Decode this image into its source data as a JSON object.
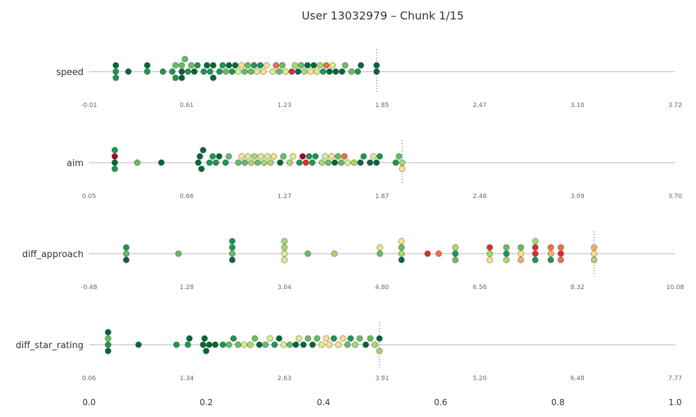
{
  "chart_data": {
    "type": "scatter",
    "title": "User 13032979 – Chunk 1/15",
    "grid": false,
    "bottom_axis": {
      "range": [
        0.0,
        1.0
      ],
      "ticks": [
        "0.0",
        "0.2",
        "0.4",
        "0.6",
        "0.8",
        "1.0"
      ]
    },
    "color_scale": [
      "#006837",
      "#1a9850",
      "#66bd63",
      "#a6d96a",
      "#d9ef8b",
      "#fee08b",
      "#fdae61",
      "#f46d43",
      "#d73027",
      "#a50026"
    ],
    "rows": [
      {
        "name": "speed",
        "range": [
          -0.01,
          3.72
        ],
        "tick_labels": [
          "-0.01",
          "0.61",
          "1.23",
          "1.85",
          "2.47",
          "3.10",
          "3.72"
        ],
        "marker": 1.82,
        "points": [
          0.16,
          0.16,
          0.16,
          0.24,
          0.36,
          0.36,
          0.46,
          0.52,
          0.54,
          0.54,
          0.58,
          0.58,
          0.58,
          0.6,
          0.62,
          0.64,
          0.66,
          0.68,
          0.72,
          0.74,
          0.76,
          0.78,
          0.78,
          0.82,
          0.84,
          0.86,
          0.88,
          0.9,
          0.92,
          0.94,
          0.96,
          0.98,
          1.0,
          1.02,
          1.04,
          1.06,
          1.08,
          1.1,
          1.12,
          1.16,
          1.18,
          1.2,
          1.22,
          1.24,
          1.28,
          1.3,
          1.32,
          1.34,
          1.36,
          1.38,
          1.4,
          1.42,
          1.44,
          1.46,
          1.48,
          1.5,
          1.52,
          1.54,
          1.56,
          1.6,
          1.62,
          1.66,
          1.7,
          1.72,
          1.82,
          1.82
        ]
      },
      {
        "name": "aim",
        "range": [
          0.05,
          3.7
        ],
        "tick_labels": [
          "0.05",
          "0.66",
          "1.27",
          "1.87",
          "2.48",
          "3.09",
          "3.70"
        ],
        "marker": 2.0,
        "points": [
          0.21,
          0.21,
          0.21,
          0.21,
          0.35,
          0.5,
          0.73,
          0.74,
          0.75,
          0.76,
          0.8,
          0.82,
          0.84,
          0.86,
          0.9,
          0.92,
          0.98,
          1.0,
          1.02,
          1.04,
          1.06,
          1.08,
          1.1,
          1.12,
          1.14,
          1.16,
          1.18,
          1.2,
          1.24,
          1.26,
          1.3,
          1.32,
          1.36,
          1.38,
          1.4,
          1.42,
          1.44,
          1.46,
          1.5,
          1.52,
          1.54,
          1.56,
          1.58,
          1.6,
          1.62,
          1.64,
          1.66,
          1.7,
          1.74,
          1.76,
          1.8,
          1.82,
          1.84,
          1.86,
          1.96,
          1.98,
          2.0,
          2.0
        ]
      },
      {
        "name": "diff_approach",
        "range": [
          -0.48,
          10.08
        ],
        "tick_labels": [
          "-0.48",
          "1.28",
          "3.04",
          "4.80",
          "6.56",
          "8.32",
          "10.08"
        ],
        "marker": 8.62,
        "points": [
          0.19,
          0.19,
          0.19,
          1.13,
          2.1,
          2.1,
          2.1,
          2.1,
          3.04,
          3.04,
          3.04,
          3.04,
          3.46,
          3.94,
          4.76,
          4.76,
          5.15,
          5.15,
          5.15,
          5.15,
          5.62,
          5.82,
          6.12,
          6.12,
          6.12,
          6.74,
          6.74,
          6.74,
          7.04,
          7.04,
          7.04,
          7.3,
          7.3,
          7.3,
          7.56,
          7.56,
          7.56,
          7.56,
          7.84,
          7.84,
          7.84,
          8.02,
          8.02,
          8.02,
          8.62,
          8.62,
          8.62
        ]
      },
      {
        "name": "diff_star_rating",
        "range": [
          0.06,
          7.77
        ],
        "tick_labels": [
          "0.06",
          "1.34",
          "2.63",
          "3.91",
          "5.20",
          "6.48",
          "7.77"
        ],
        "marker": 3.88,
        "points": [
          0.31,
          0.31,
          0.31,
          0.31,
          0.71,
          1.21,
          1.36,
          1.38,
          1.56,
          1.58,
          1.6,
          1.64,
          1.72,
          1.82,
          1.9,
          1.96,
          2.02,
          2.1,
          2.18,
          2.24,
          2.3,
          2.38,
          2.44,
          2.5,
          2.56,
          2.62,
          2.7,
          2.78,
          2.82,
          2.88,
          2.94,
          3.0,
          3.06,
          3.12,
          3.18,
          3.22,
          3.28,
          3.34,
          3.4,
          3.46,
          3.5,
          3.56,
          3.62,
          3.7,
          3.76,
          3.82,
          3.88,
          3.88
        ]
      }
    ]
  }
}
